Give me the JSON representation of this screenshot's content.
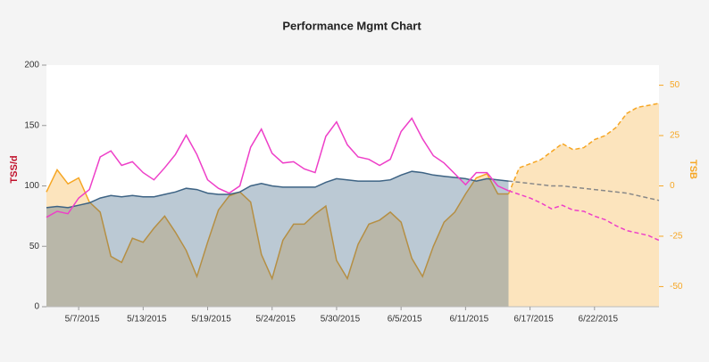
{
  "chart_data": {
    "type": "line",
    "title": "Performance Mgmt Chart",
    "ylabel": "TSS/d",
    "y2label": "TSB",
    "ylabel_color": "#c0102a",
    "y2label_color": "#f6a623",
    "categories": [
      null,
      null,
      null,
      "5/7/2015",
      null,
      null,
      null,
      null,
      null,
      "5/13/2015",
      null,
      null,
      null,
      null,
      null,
      "5/19/2015",
      null,
      null,
      null,
      null,
      null,
      "5/24/2015",
      null,
      null,
      null,
      null,
      null,
      "5/30/2015",
      null,
      null,
      null,
      null,
      null,
      "6/5/2015",
      null,
      null,
      null,
      null,
      null,
      "6/11/2015",
      null,
      null,
      null,
      null,
      null,
      "6/17/2015",
      null,
      null,
      null,
      null,
      null,
      "6/22/2015",
      null,
      null,
      null,
      null,
      null,
      null
    ],
    "ylim": [
      0,
      200
    ],
    "yticks": [
      0,
      50,
      100,
      150,
      200
    ],
    "y2lim": [
      -60,
      60
    ],
    "y2ticks": [
      -50,
      -25,
      0,
      25,
      50
    ],
    "series": [
      {
        "color": "#f6a623",
        "axis": "y2",
        "area": true,
        "dash": false,
        "values": [
          -3,
          8,
          1,
          4,
          -8,
          -13,
          -35,
          -38,
          -26,
          -28,
          -21,
          -15,
          -23,
          -32,
          -45,
          -28,
          -12,
          -5,
          -3,
          -8,
          -34,
          -46,
          -27,
          -19,
          -19,
          -14,
          -10,
          -37,
          -46,
          -29,
          -19,
          -17,
          -13,
          -18,
          -36,
          -45,
          -30,
          -18,
          -13,
          -4,
          4,
          6,
          -4,
          -4,
          null,
          null,
          null,
          null,
          null,
          null,
          null,
          null,
          null,
          null,
          null,
          null,
          null,
          null
        ]
      },
      {
        "color": "#f6a623",
        "axis": "y2",
        "area": true,
        "dash": true,
        "values": [
          null,
          null,
          null,
          null,
          null,
          null,
          null,
          null,
          null,
          null,
          null,
          null,
          null,
          null,
          null,
          null,
          null,
          null,
          null,
          null,
          null,
          null,
          null,
          null,
          null,
          null,
          null,
          null,
          null,
          null,
          null,
          null,
          null,
          null,
          null,
          null,
          null,
          null,
          null,
          null,
          null,
          null,
          null,
          -4,
          9,
          11,
          13,
          17,
          21,
          18,
          19,
          23,
          25,
          29,
          36,
          39,
          40,
          41
        ]
      },
      {
        "color": "#3d6384",
        "axis": "y",
        "area": true,
        "dash": false,
        "values": [
          82,
          83,
          82,
          84,
          86,
          90,
          92,
          91,
          92,
          91,
          91,
          93,
          95,
          98,
          97,
          94,
          93,
          93,
          95,
          100,
          102,
          100,
          99,
          99,
          99,
          99,
          103,
          106,
          105,
          104,
          104,
          104,
          105,
          109,
          112,
          111,
          109,
          108,
          107,
          106,
          104,
          106,
          105,
          104,
          null,
          null,
          null,
          null,
          null,
          null,
          null,
          null,
          null,
          null,
          null,
          null,
          null,
          null
        ]
      },
      {
        "color": "#888888",
        "axis": "y",
        "area": false,
        "dash": true,
        "values": [
          null,
          null,
          null,
          null,
          null,
          null,
          null,
          null,
          null,
          null,
          null,
          null,
          null,
          null,
          null,
          null,
          null,
          null,
          null,
          null,
          null,
          null,
          null,
          null,
          null,
          null,
          null,
          null,
          null,
          null,
          null,
          null,
          null,
          null,
          null,
          null,
          null,
          null,
          null,
          null,
          null,
          null,
          null,
          104,
          103,
          102,
          101,
          100,
          100,
          99,
          98,
          97,
          96,
          95,
          94,
          92,
          90,
          88
        ]
      },
      {
        "color": "#ee3fc8",
        "axis": "y",
        "area": false,
        "dash": false,
        "values": [
          74,
          79,
          77,
          90,
          97,
          124,
          129,
          117,
          120,
          111,
          105,
          115,
          126,
          142,
          126,
          105,
          98,
          94,
          100,
          132,
          147,
          127,
          119,
          120,
          114,
          111,
          141,
          153,
          134,
          124,
          122,
          117,
          122,
          145,
          156,
          139,
          125,
          119,
          110,
          101,
          111,
          111,
          100,
          96,
          null,
          null,
          null,
          null,
          null,
          null,
          null,
          null,
          null,
          null,
          null,
          null,
          null,
          null
        ]
      },
      {
        "color": "#ee3fc8",
        "axis": "y",
        "area": false,
        "dash": true,
        "values": [
          null,
          null,
          null,
          null,
          null,
          null,
          null,
          null,
          null,
          null,
          null,
          null,
          null,
          null,
          null,
          null,
          null,
          null,
          null,
          null,
          null,
          null,
          null,
          null,
          null,
          null,
          null,
          null,
          null,
          null,
          null,
          null,
          null,
          null,
          null,
          null,
          null,
          null,
          null,
          null,
          null,
          null,
          null,
          96,
          93,
          90,
          86,
          81,
          84,
          80,
          79,
          75,
          72,
          67,
          63,
          61,
          59,
          55
        ]
      }
    ]
  }
}
